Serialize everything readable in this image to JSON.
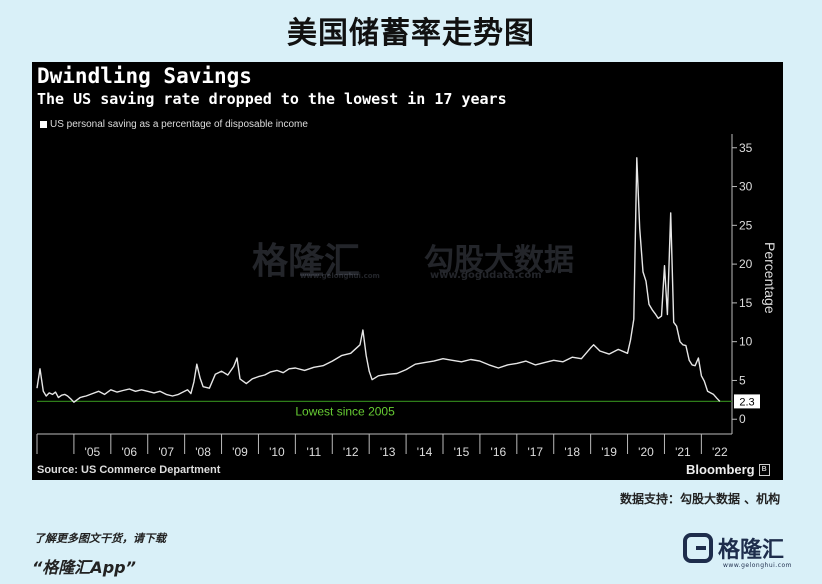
{
  "page": {
    "title": "美国储蓄率走势图",
    "credit": "数据支持：勾股大数据 、机构",
    "cta": "了解更多图文干货，请下载",
    "app_name": "“格隆汇App”",
    "logo_text": "格隆汇",
    "logo_url": "www.gelonghui.com"
  },
  "watermark": {
    "left": "格隆汇",
    "left_url": "www.gelonghui.com",
    "right": "勾股大数据",
    "right_url": "www.gogudata.com"
  },
  "chart_data": {
    "type": "line",
    "title": "Dwindling Savings",
    "subtitle": "The US saving rate dropped to the lowest in 17 years",
    "legend": "US personal saving as a percentage of disposable income",
    "ylabel": "Percentage",
    "source": "Source: US Commerce Department",
    "brand": "Bloomberg",
    "ylim": [
      -1,
      36
    ],
    "yticks": [
      0,
      5,
      10,
      15,
      20,
      25,
      30,
      35
    ],
    "xticks": [
      "'05",
      "'06",
      "'07",
      "'08",
      "'09",
      "'10",
      "'11",
      "'12",
      "'13",
      "'14",
      "'15",
      "'16",
      "'17",
      "'18",
      "'19",
      "'20",
      "'21",
      "'22"
    ],
    "xlim": [
      2004.0,
      2022.83
    ],
    "reference_line": {
      "value": 2.3,
      "label": "Lowest since 2005",
      "color": "#2e7d1a",
      "label_color": "#66cc33"
    },
    "last_value_label": "2.3",
    "line_color": "#e6e6e6",
    "series": [
      {
        "x": [
          2004.0,
          2004.08,
          2004.17,
          2004.25,
          2004.33,
          2004.42,
          2004.5,
          2004.58,
          2004.67,
          2004.75,
          2004.83,
          2004.92,
          2005.0,
          2005.08,
          2005.17,
          2005.25,
          2005.33,
          2005.5,
          2005.67,
          2005.83,
          2006.0,
          2006.17,
          2006.33,
          2006.5,
          2006.67,
          2006.83,
          2007.0,
          2007.17,
          2007.33,
          2007.5,
          2007.67,
          2007.83,
          2008.0,
          2008.08,
          2008.17,
          2008.25,
          2008.33,
          2008.42,
          2008.5,
          2008.67,
          2008.83,
          2009.0,
          2009.17,
          2009.33,
          2009.42,
          2009.5,
          2009.67,
          2009.83,
          2010.0,
          2010.17,
          2010.33,
          2010.5,
          2010.67,
          2010.83,
          2011.0,
          2011.25,
          2011.5,
          2011.75,
          2012.0,
          2012.25,
          2012.5,
          2012.75,
          2012.83,
          2012.92,
          2013.0,
          2013.08,
          2013.25,
          2013.5,
          2013.75,
          2014.0,
          2014.25,
          2014.5,
          2014.75,
          2015.0,
          2015.25,
          2015.5,
          2015.75,
          2016.0,
          2016.25,
          2016.5,
          2016.75,
          2017.0,
          2017.25,
          2017.5,
          2017.75,
          2018.0,
          2018.25,
          2018.5,
          2018.75,
          2019.0,
          2019.08,
          2019.25,
          2019.5,
          2019.75,
          2020.0,
          2020.08,
          2020.17,
          2020.25,
          2020.33,
          2020.42,
          2020.5,
          2020.58,
          2020.67,
          2020.75,
          2020.83,
          2020.92,
          2021.0,
          2021.08,
          2021.17,
          2021.25,
          2021.33,
          2021.42,
          2021.5,
          2021.58,
          2021.67,
          2021.75,
          2021.83,
          2021.92,
          2022.0,
          2022.08,
          2022.17,
          2022.25,
          2022.33,
          2022.42,
          2022.5
        ],
        "y": [
          4.0,
          6.5,
          3.6,
          3.0,
          3.4,
          3.2,
          3.5,
          2.8,
          3.1,
          3.2,
          3.0,
          2.6,
          2.2,
          2.5,
          2.8,
          2.9,
          3.0,
          3.3,
          3.6,
          3.2,
          3.8,
          3.5,
          3.7,
          3.9,
          3.6,
          3.8,
          3.6,
          3.4,
          3.6,
          3.2,
          3.0,
          3.2,
          3.6,
          3.8,
          3.3,
          4.8,
          7.1,
          5.3,
          4.2,
          4.0,
          5.8,
          6.2,
          5.7,
          6.8,
          7.9,
          5.2,
          4.6,
          5.2,
          5.5,
          5.7,
          6.1,
          6.3,
          6.0,
          6.5,
          6.6,
          6.3,
          6.7,
          6.9,
          7.5,
          8.2,
          8.5,
          9.6,
          11.5,
          8.2,
          6.2,
          5.1,
          5.6,
          5.8,
          5.9,
          6.4,
          7.1,
          7.3,
          7.5,
          7.8,
          7.6,
          7.4,
          7.7,
          7.5,
          7.0,
          6.6,
          7.0,
          7.2,
          7.5,
          7.0,
          7.3,
          7.6,
          7.4,
          8.0,
          7.8,
          9.2,
          9.6,
          8.8,
          8.4,
          9.0,
          8.5,
          10.2,
          12.9,
          33.7,
          24.6,
          19.0,
          17.8,
          14.8,
          14.1,
          13.6,
          13.0,
          13.3,
          19.8,
          13.5,
          26.6,
          12.5,
          12.0,
          10.0,
          9.6,
          9.5,
          7.6,
          7.0,
          6.9,
          7.9,
          5.6,
          4.9,
          3.6,
          3.4,
          3.2,
          2.7,
          2.3
        ]
      }
    ]
  }
}
